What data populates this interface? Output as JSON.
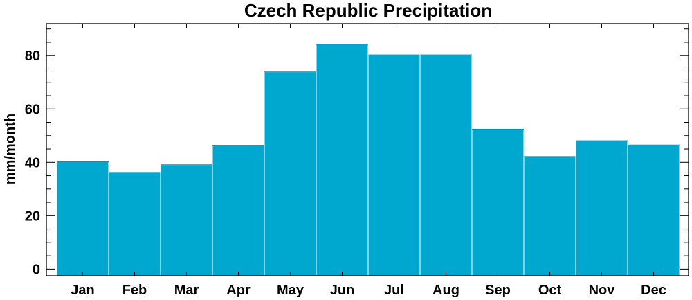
{
  "chart_data": {
    "type": "bar",
    "title": "Czech Republic Precipitation",
    "xlabel": "",
    "ylabel": "mm/month",
    "categories": [
      "Jan",
      "Feb",
      "Mar",
      "Apr",
      "May",
      "Jun",
      "Jul",
      "Aug",
      "Sep",
      "Oct",
      "Nov",
      "Dec"
    ],
    "values": [
      40.2,
      36.2,
      39.1,
      46.2,
      73.9,
      84.2,
      80.3,
      80.3,
      52.4,
      42.2,
      48.1,
      46.5
    ],
    "ylim": [
      -2.5,
      92
    ],
    "yticks": [
      0,
      20,
      40,
      60,
      80
    ],
    "grid": false,
    "bar_color": "#00a8d0"
  }
}
